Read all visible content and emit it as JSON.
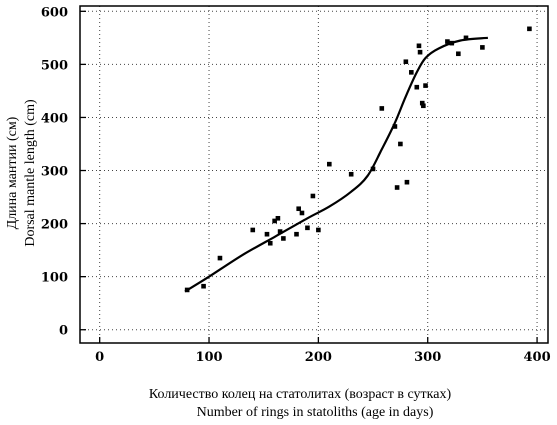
{
  "chart_data": {
    "type": "scatter",
    "title": "",
    "xlabel_ru": "Количество колец на статолитах (возраст в сутках)",
    "xlabel_en": "Number of rings in statoliths (age in days)",
    "ylabel_ru": "Длина мантии (см)",
    "ylabel_en": "Dorsal mantle length (cm)",
    "xlim": [
      -18,
      410
    ],
    "ylim": [
      -25,
      610
    ],
    "xticks": [
      0,
      100,
      200,
      300,
      400
    ],
    "yticks": [
      0,
      100,
      200,
      300,
      400,
      500,
      600
    ],
    "grid": true,
    "points": [
      [
        80,
        75
      ],
      [
        95,
        82
      ],
      [
        110,
        135
      ],
      [
        140,
        188
      ],
      [
        153,
        180
      ],
      [
        156,
        163
      ],
      [
        160,
        205
      ],
      [
        163,
        210
      ],
      [
        165,
        185
      ],
      [
        168,
        172
      ],
      [
        180,
        180
      ],
      [
        182,
        228
      ],
      [
        185,
        220
      ],
      [
        190,
        192
      ],
      [
        195,
        252
      ],
      [
        200,
        188
      ],
      [
        210,
        312
      ],
      [
        230,
        293
      ],
      [
        250,
        303
      ],
      [
        258,
        417
      ],
      [
        270,
        383
      ],
      [
        272,
        268
      ],
      [
        275,
        350
      ],
      [
        280,
        505
      ],
      [
        281,
        278
      ],
      [
        285,
        485
      ],
      [
        290,
        457
      ],
      [
        292,
        535
      ],
      [
        293,
        523
      ],
      [
        295,
        427
      ],
      [
        296,
        422
      ],
      [
        298,
        460
      ],
      [
        318,
        543
      ],
      [
        322,
        540
      ],
      [
        328,
        520
      ],
      [
        335,
        550
      ],
      [
        350,
        532
      ],
      [
        393,
        567
      ]
    ],
    "curve": [
      [
        78,
        72
      ],
      [
        100,
        100
      ],
      [
        130,
        140
      ],
      [
        160,
        175
      ],
      [
        190,
        210
      ],
      [
        210,
        232
      ],
      [
        230,
        260
      ],
      [
        245,
        290
      ],
      [
        258,
        340
      ],
      [
        270,
        390
      ],
      [
        280,
        440
      ],
      [
        290,
        485
      ],
      [
        298,
        512
      ],
      [
        310,
        530
      ],
      [
        330,
        545
      ],
      [
        355,
        550
      ]
    ],
    "colors": {
      "ink": "#000000",
      "grid": "#444444",
      "background": "#ffffff"
    }
  }
}
